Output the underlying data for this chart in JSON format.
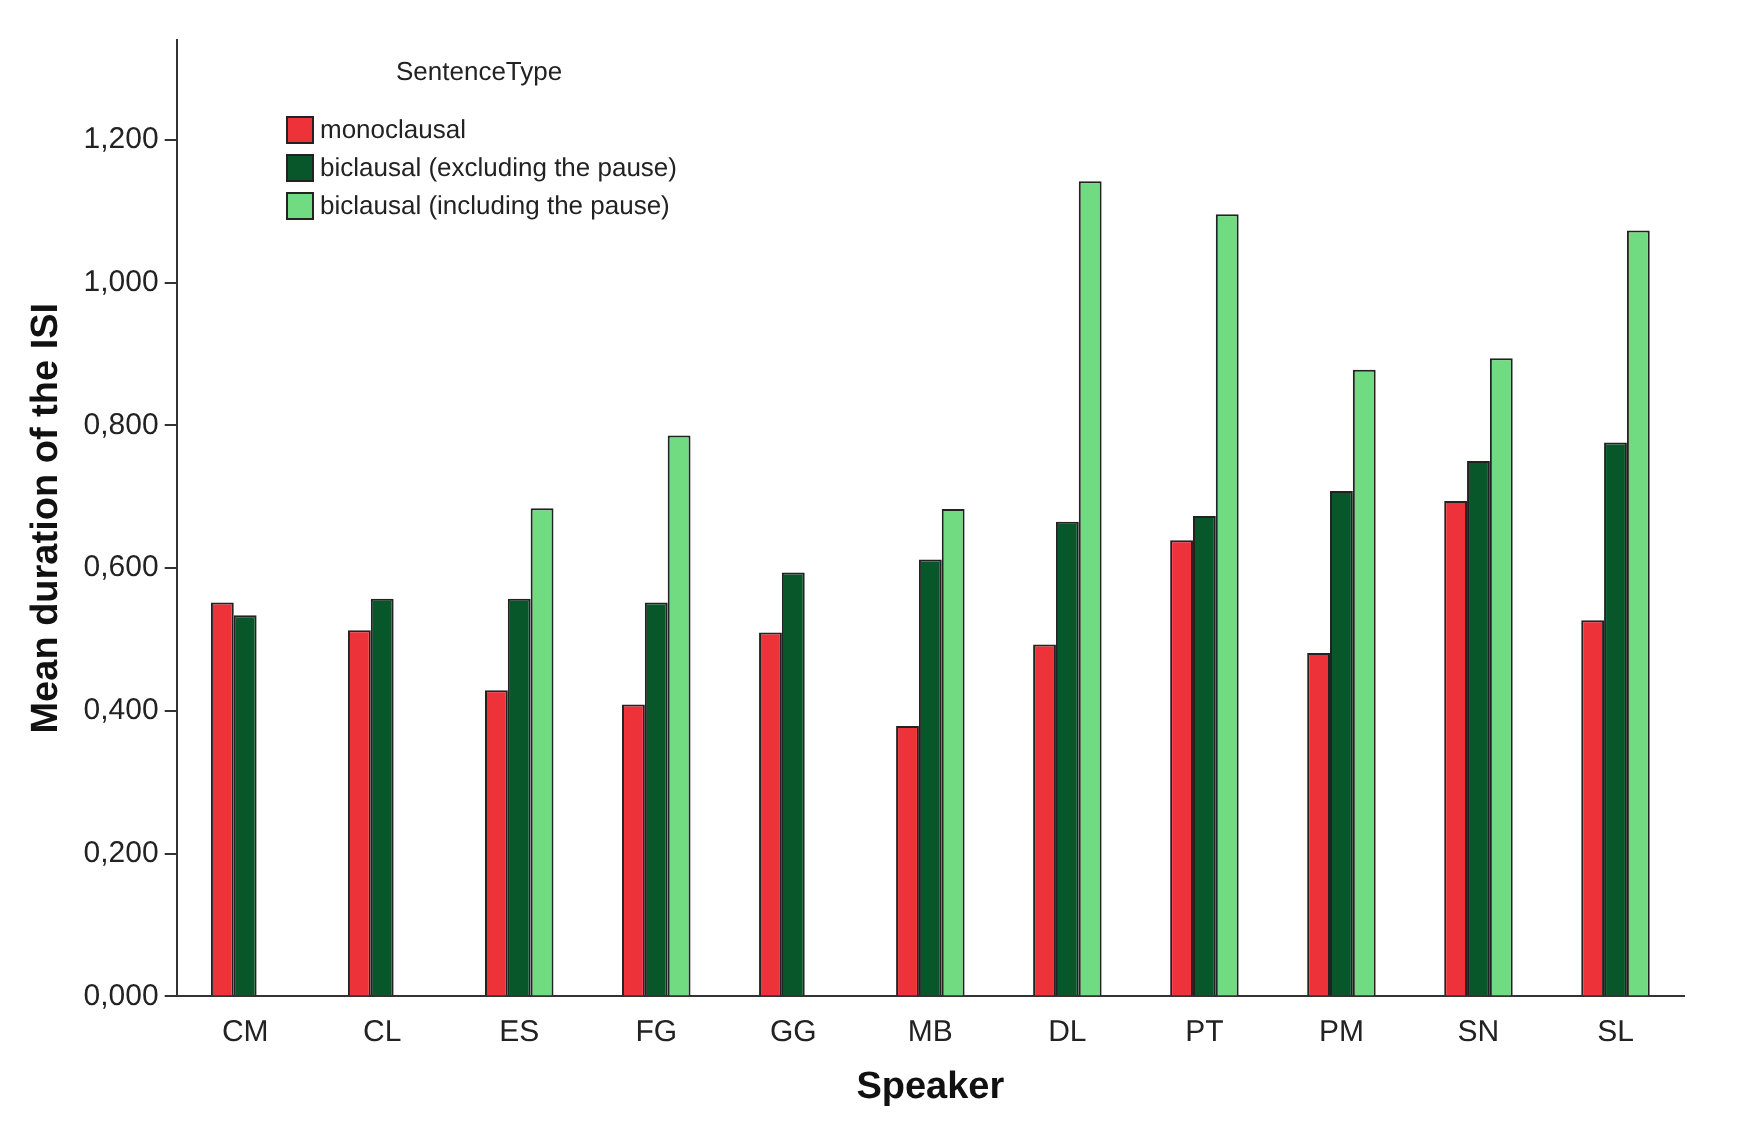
{
  "chart_data": {
    "type": "bar",
    "xlabel": "Speaker",
    "ylabel": "Mean duration of the ISI",
    "legend_title": "SentenceType",
    "categories": [
      "CM",
      "CL",
      "ES",
      "FG",
      "GG",
      "MB",
      "DL",
      "PT",
      "PM",
      "SN",
      "SL"
    ],
    "series": [
      {
        "name": "monoclausal",
        "color": "#ee3239",
        "values": [
          0.552,
          0.513,
          0.429,
          0.409,
          0.51,
          0.379,
          0.493,
          0.639,
          0.481,
          0.694,
          0.527
        ]
      },
      {
        "name": "biclausal (excluding the pause)",
        "color": "#08572a",
        "values": [
          0.534,
          0.557,
          0.557,
          0.552,
          0.594,
          0.612,
          0.665,
          0.673,
          0.708,
          0.75,
          0.776
        ]
      },
      {
        "name": "biclausal (including the pause)",
        "color": "#70db80",
        "values": [
          null,
          null,
          0.684,
          0.786,
          null,
          0.683,
          1.142,
          1.096,
          0.878,
          0.894,
          1.073
        ]
      }
    ],
    "ylim": [
      0,
      1.34
    ],
    "yticks": [
      {
        "value": 0,
        "label": "0,000"
      },
      {
        "value": 0.2,
        "label": "0,200"
      },
      {
        "value": 0.4,
        "label": "0,400"
      },
      {
        "value": 0.6,
        "label": "0,600"
      },
      {
        "value": 0.8,
        "label": "0,800"
      },
      {
        "value": 1.0,
        "label": "1,000"
      },
      {
        "value": 1.2,
        "label": "1,200"
      }
    ],
    "grid": false,
    "legend": "top left"
  }
}
